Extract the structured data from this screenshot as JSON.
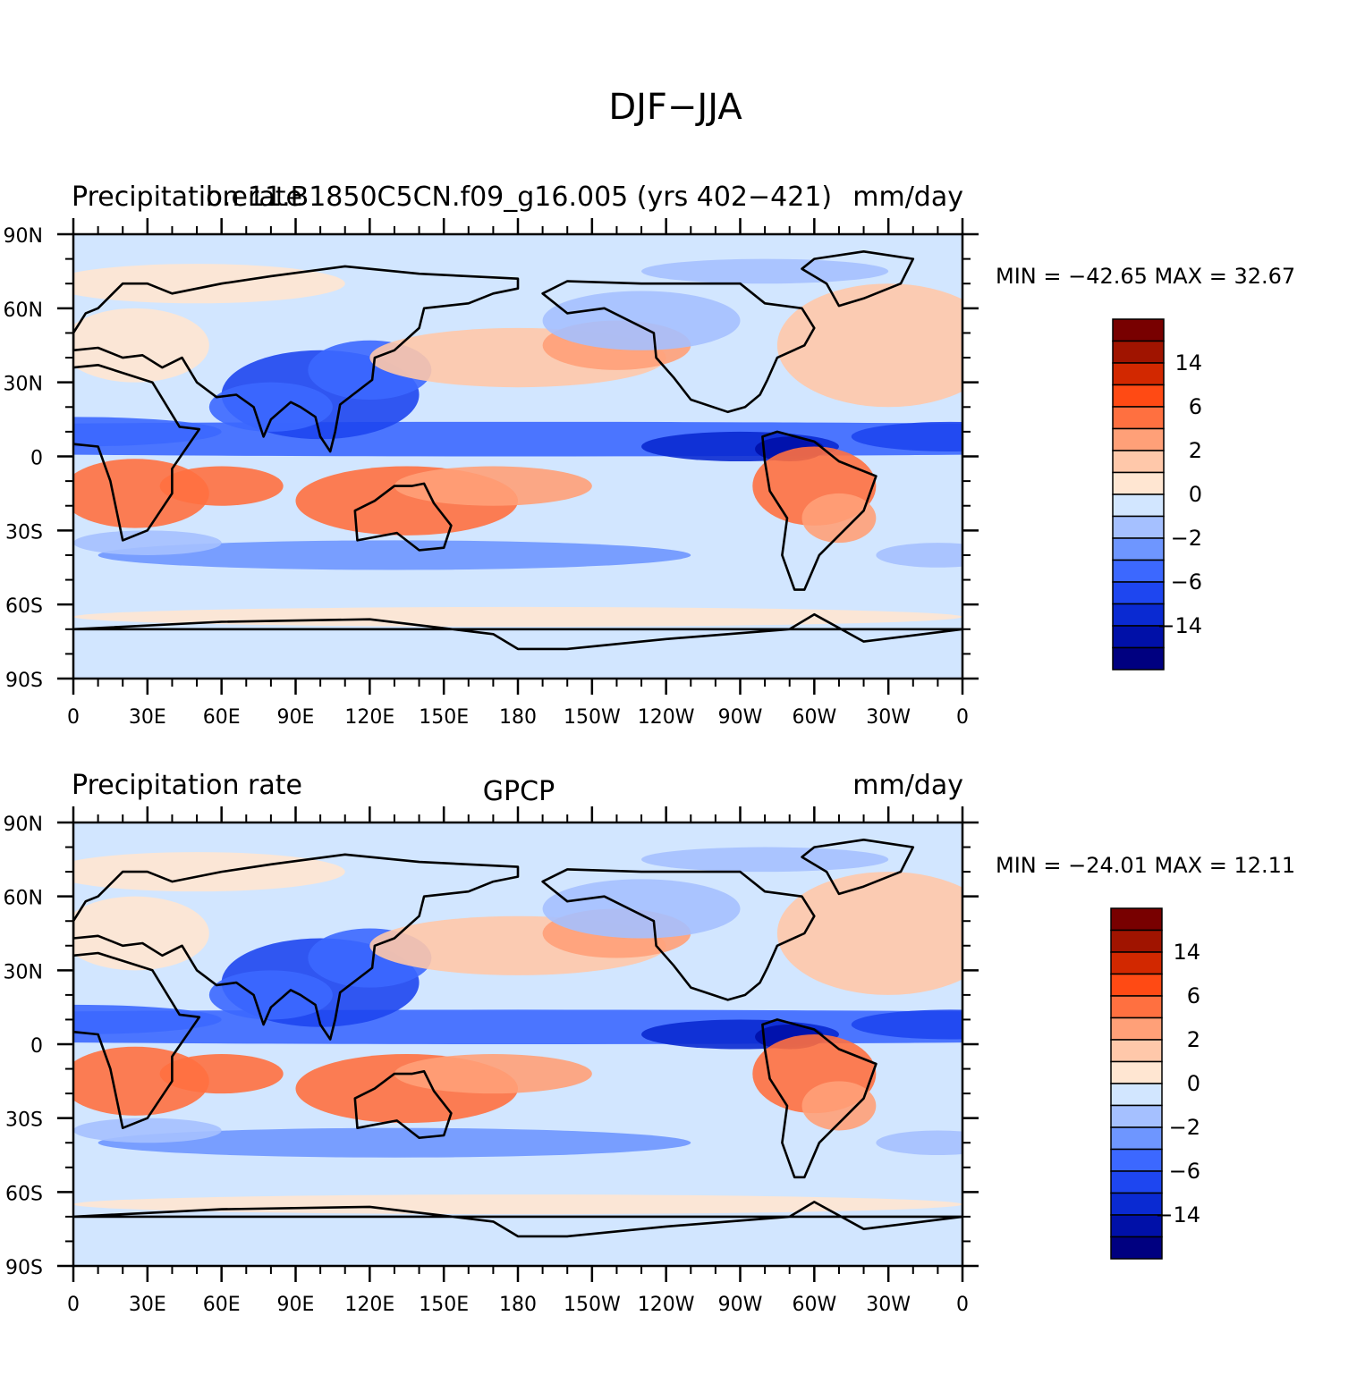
{
  "main_title": "DJF−JJA",
  "colors": {
    "levels": [
      "#000080",
      "#0010a8",
      "#0a2ad2",
      "#1e46f0",
      "#3c68ff",
      "#6e96ff",
      "#a5c0ff",
      "#d2e6ff",
      "#ffe6d2",
      "#ffc8aa",
      "#ffa078",
      "#ff7040",
      "#ff4a14",
      "#d22800",
      "#a01400",
      "#780000"
    ],
    "coast": "#000000",
    "frame": "#000000"
  },
  "axes": {
    "lat_labels": [
      "90N",
      "60N",
      "30N",
      "0",
      "30S",
      "60S",
      "90S"
    ],
    "lon_labels": [
      "0",
      "30E",
      "60E",
      "90E",
      "120E",
      "150E",
      "180",
      "150W",
      "120W",
      "90W",
      "60W",
      "30W",
      "0"
    ]
  },
  "colorbar_labels": [
    "14",
    "6",
    "2",
    "0",
    "−2",
    "−6",
    "−14"
  ],
  "panels": [
    {
      "left_string": "Precipitation rate",
      "center_string": "b.e11.B1850C5CN.f09_g16.005 (yrs 402−421)",
      "right_string": "mm/day",
      "stats": "MIN = −42.65  MAX =  32.67",
      "min": -42.65,
      "max": 32.67
    },
    {
      "left_string": "Precipitation rate",
      "center_string": "GPCP",
      "right_string": "mm/day",
      "stats": "MIN = −24.01  MAX =  12.11",
      "min": -24.01,
      "max": 12.11
    }
  ]
}
